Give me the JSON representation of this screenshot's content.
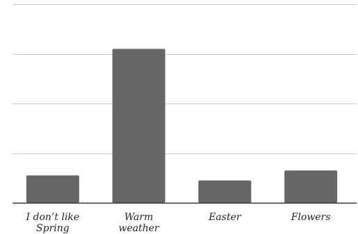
{
  "chart_data": {
    "type": "bar",
    "categories": [
      [
        "I don’t like",
        "Spring"
      ],
      [
        "Warm",
        "weather"
      ],
      [
        "Easter"
      ],
      [
        "Flowers"
      ]
    ],
    "values": [
      11,
      62,
      9,
      13
    ],
    "ylim": [
      0,
      80
    ],
    "yticks": [
      0,
      20,
      40,
      60,
      80
    ],
    "grid": true,
    "legend": "none",
    "bar_color": "#666666",
    "grid_color": "#cccccc",
    "axis_color": "#333333"
  }
}
